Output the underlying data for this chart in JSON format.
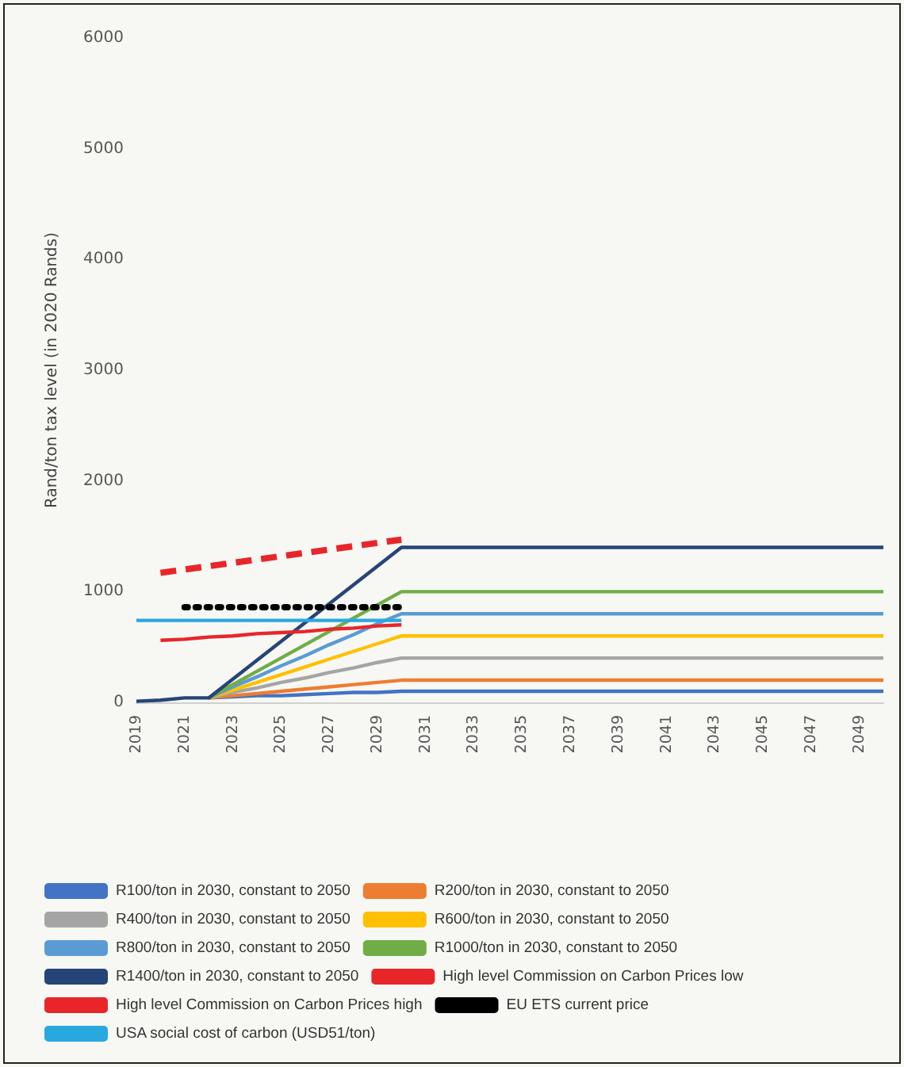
{
  "chart_data": {
    "type": "line",
    "ylabel": "Rand/ton tax level (in 2020 Rands)",
    "categories": [
      "2019",
      null,
      "2021",
      null,
      "2023",
      null,
      "2025",
      null,
      "2027",
      null,
      "2029",
      null,
      "2031",
      null,
      "2033",
      null,
      "2035",
      null,
      "2037",
      null,
      "2039",
      null,
      "2041",
      null,
      "2043",
      null,
      "2045",
      null,
      "2047",
      null,
      "2049",
      null
    ],
    "ylim": [
      0,
      6000
    ],
    "yticks": [
      0,
      1000,
      2000,
      3000,
      4000,
      5000,
      6000
    ],
    "grid": false,
    "legend": "bottom",
    "marker": "none",
    "series": [
      {
        "name": "R100/ton in 2030, constant to 2050",
        "color": "#4472c4",
        "values": [
          null,
          null,
          null,
          40,
          50,
          60,
          60,
          70,
          80,
          90,
          90,
          100,
          100,
          100,
          100,
          100,
          100,
          100,
          100,
          100,
          100,
          100,
          100,
          100,
          100,
          100,
          100,
          100,
          100,
          100,
          100,
          100
        ]
      },
      {
        "name": "R200/ton in 2030, constant to 2050",
        "color": "#ed7d31",
        "values": [
          null,
          null,
          null,
          40,
          60,
          80,
          100,
          120,
          140,
          160,
          180,
          200,
          200,
          200,
          200,
          200,
          200,
          200,
          200,
          200,
          200,
          200,
          200,
          200,
          200,
          200,
          200,
          200,
          200,
          200,
          200,
          200
        ]
      },
      {
        "name": "R400/ton in 2030, constant to 2050",
        "color": "#a5a5a5",
        "values": [
          null,
          null,
          null,
          40,
          90,
          130,
          180,
          220,
          270,
          310,
          360,
          400,
          400,
          400,
          400,
          400,
          400,
          400,
          400,
          400,
          400,
          400,
          400,
          400,
          400,
          400,
          400,
          400,
          400,
          400,
          400,
          400
        ]
      },
      {
        "name": "R600/ton in 2030, constant to 2050",
        "color": "#ffc000",
        "values": [
          null,
          null,
          null,
          40,
          110,
          180,
          250,
          320,
          390,
          460,
          530,
          600,
          600,
          600,
          600,
          600,
          600,
          600,
          600,
          600,
          600,
          600,
          600,
          600,
          600,
          600,
          600,
          600,
          600,
          600,
          600,
          600
        ]
      },
      {
        "name": "R800/ton in 2030, constant to 2050",
        "color": "#5b9bd5",
        "values": [
          null,
          null,
          null,
          40,
          140,
          230,
          330,
          420,
          520,
          610,
          710,
          800,
          800,
          800,
          800,
          800,
          800,
          800,
          800,
          800,
          800,
          800,
          800,
          800,
          800,
          800,
          800,
          800,
          800,
          800,
          800,
          800
        ]
      },
      {
        "name": "R1000/ton in 2030, constant to 2050",
        "color": "#70ad47",
        "values": [
          null,
          null,
          null,
          40,
          160,
          280,
          400,
          520,
          640,
          760,
          880,
          1000,
          1000,
          1000,
          1000,
          1000,
          1000,
          1000,
          1000,
          1000,
          1000,
          1000,
          1000,
          1000,
          1000,
          1000,
          1000,
          1000,
          1000,
          1000,
          1000,
          1000
        ]
      },
      {
        "name": "R1400/ton in 2030, constant to 2050",
        "color": "#264478",
        "values": [
          10,
          20,
          40,
          40,
          210,
          380,
          550,
          720,
          890,
          1060,
          1230,
          1400,
          1400,
          1400,
          1400,
          1400,
          1400,
          1400,
          1400,
          1400,
          1400,
          1400,
          1400,
          1400,
          1400,
          1400,
          1400,
          1400,
          1400,
          1400,
          1400,
          1400
        ]
      },
      {
        "name": "High level Commission on Carbon Prices low",
        "color": "#e8262a",
        "values": [
          null,
          560,
          570,
          590,
          600,
          620,
          630,
          640,
          660,
          670,
          690,
          700,
          null,
          null,
          null,
          null,
          null,
          null,
          null,
          null,
          null,
          null,
          null,
          null,
          null,
          null,
          null,
          null,
          null,
          null,
          null,
          null
        ]
      },
      {
        "name": "High level Commission on Carbon Prices high",
        "color": "#e8262a",
        "line_style": "dashed",
        "values": [
          null,
          1170,
          1200,
          1230,
          1260,
          1290,
          1320,
          1350,
          1380,
          1410,
          1440,
          1470,
          null,
          null,
          null,
          null,
          null,
          null,
          null,
          null,
          null,
          null,
          null,
          null,
          null,
          null,
          null,
          null,
          null,
          null,
          null,
          null
        ]
      },
      {
        "name": "EU ETS current price",
        "color": "#000000",
        "line_style": "dotted",
        "values": [
          null,
          null,
          860,
          860,
          860,
          860,
          860,
          860,
          860,
          860,
          860,
          860,
          null,
          null,
          null,
          null,
          null,
          null,
          null,
          null,
          null,
          null,
          null,
          null,
          null,
          null,
          null,
          null,
          null,
          null,
          null,
          null
        ]
      },
      {
        "name": "USA social cost of carbon (USD51/ton)",
        "color": "#29a8e0",
        "values": [
          740,
          740,
          740,
          740,
          740,
          740,
          740,
          740,
          740,
          740,
          740,
          740,
          null,
          null,
          null,
          null,
          null,
          null,
          null,
          null,
          null,
          null,
          null,
          null,
          null,
          null,
          null,
          null,
          null,
          null,
          null,
          null
        ]
      }
    ]
  }
}
